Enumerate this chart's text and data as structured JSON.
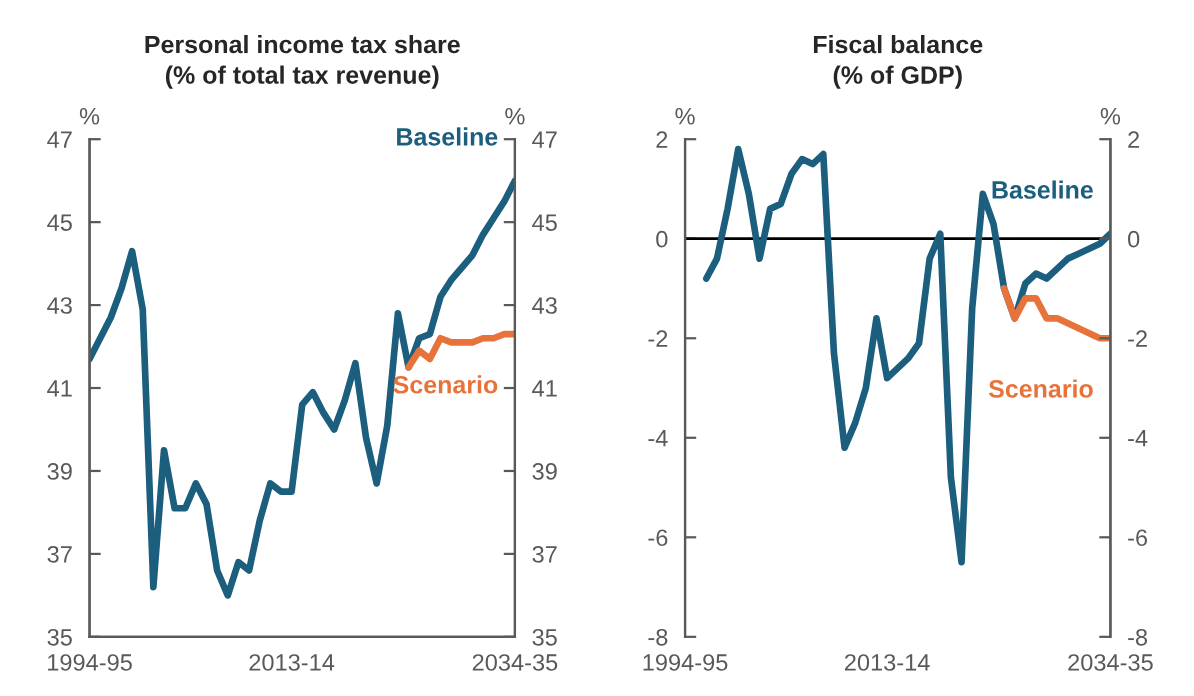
{
  "chart_data": [
    {
      "type": "line",
      "title": "Personal income tax share",
      "subtitle": "(% of total tax revenue)",
      "ylabel": "%",
      "y2label": "%",
      "categories": [
        "1994-95",
        null,
        null,
        null,
        null,
        null,
        null,
        null,
        null,
        null,
        null,
        null,
        null,
        null,
        null,
        null,
        null,
        null,
        null,
        "2013-14",
        null,
        null,
        null,
        null,
        null,
        null,
        null,
        null,
        null,
        null,
        null,
        null,
        null,
        null,
        null,
        null,
        null,
        null,
        null,
        null,
        "2034-35"
      ],
      "ylim": [
        35,
        47
      ],
      "yticks": [
        35,
        37,
        39,
        41,
        43,
        45,
        47
      ],
      "y2lim": [
        35,
        47
      ],
      "y2ticks": [
        35,
        37,
        39,
        41,
        43,
        45,
        47
      ],
      "grid": false,
      "legend": false,
      "series": [
        {
          "name": "Baseline",
          "color": "#1b5e7e",
          "values": [
            41.7,
            42.2,
            42.7,
            43.4,
            44.3,
            42.9,
            36.2,
            39.5,
            38.1,
            38.1,
            38.7,
            38.2,
            36.6,
            36.0,
            36.8,
            36.6,
            37.8,
            38.7,
            38.5,
            38.5,
            40.6,
            40.9,
            40.4,
            40.0,
            40.7,
            41.6,
            39.8,
            38.7,
            40.1,
            42.8,
            41.5,
            42.2,
            42.3,
            43.2,
            43.6,
            43.9,
            44.2,
            44.7,
            45.1,
            45.5,
            46.0
          ]
        },
        {
          "name": "Scenario",
          "color": "#e8733a",
          "values": [
            null,
            null,
            null,
            null,
            null,
            null,
            null,
            null,
            null,
            null,
            null,
            null,
            null,
            null,
            null,
            null,
            null,
            null,
            null,
            null,
            null,
            null,
            null,
            null,
            null,
            null,
            null,
            null,
            null,
            null,
            41.5,
            41.9,
            41.7,
            42.2,
            42.1,
            42.1,
            42.1,
            42.2,
            42.2,
            42.3,
            42.3
          ]
        }
      ]
    },
    {
      "type": "line",
      "title": "Fiscal balance",
      "subtitle": "(% of GDP)",
      "ylabel": "%",
      "y2label": "%",
      "categories": [
        "1994-95",
        null,
        null,
        null,
        null,
        null,
        null,
        null,
        null,
        null,
        null,
        null,
        null,
        null,
        null,
        null,
        null,
        null,
        null,
        "2013-14",
        null,
        null,
        null,
        null,
        null,
        null,
        null,
        null,
        null,
        null,
        null,
        null,
        null,
        null,
        null,
        null,
        null,
        null,
        null,
        null,
        "2034-35"
      ],
      "ylim": [
        -8,
        2
      ],
      "yticks": [
        -8,
        -6,
        -4,
        -2,
        0,
        2
      ],
      "y2lim": [
        -8,
        2
      ],
      "y2ticks": [
        -8,
        -6,
        -4,
        -2,
        0,
        2
      ],
      "grid": false,
      "legend": false,
      "ref_lines": [
        {
          "axis": "y",
          "value": 0,
          "color": "#000000"
        }
      ],
      "series": [
        {
          "name": "Baseline",
          "color": "#1b5e7e",
          "values": [
            null,
            null,
            -0.8,
            -0.4,
            0.6,
            1.8,
            0.9,
            -0.4,
            0.6,
            0.7,
            1.3,
            1.6,
            1.5,
            1.7,
            -2.3,
            -4.2,
            -3.7,
            -3.0,
            -1.6,
            -2.8,
            -2.6,
            -2.4,
            -2.1,
            -0.4,
            0.1,
            -4.8,
            -6.5,
            -1.4,
            0.9,
            0.3,
            -1.0,
            -1.6,
            -0.9,
            -0.7,
            -0.8,
            -0.6,
            -0.4,
            -0.3,
            -0.2,
            -0.1,
            0.1
          ]
        },
        {
          "name": "Scenario",
          "color": "#e8733a",
          "values": [
            null,
            null,
            null,
            null,
            null,
            null,
            null,
            null,
            null,
            null,
            null,
            null,
            null,
            null,
            null,
            null,
            null,
            null,
            null,
            null,
            null,
            null,
            null,
            null,
            null,
            null,
            null,
            null,
            null,
            null,
            -1.0,
            -1.6,
            -1.2,
            -1.2,
            -1.6,
            -1.6,
            -1.7,
            -1.8,
            -1.9,
            -2.0,
            -2.0
          ]
        }
      ]
    }
  ]
}
